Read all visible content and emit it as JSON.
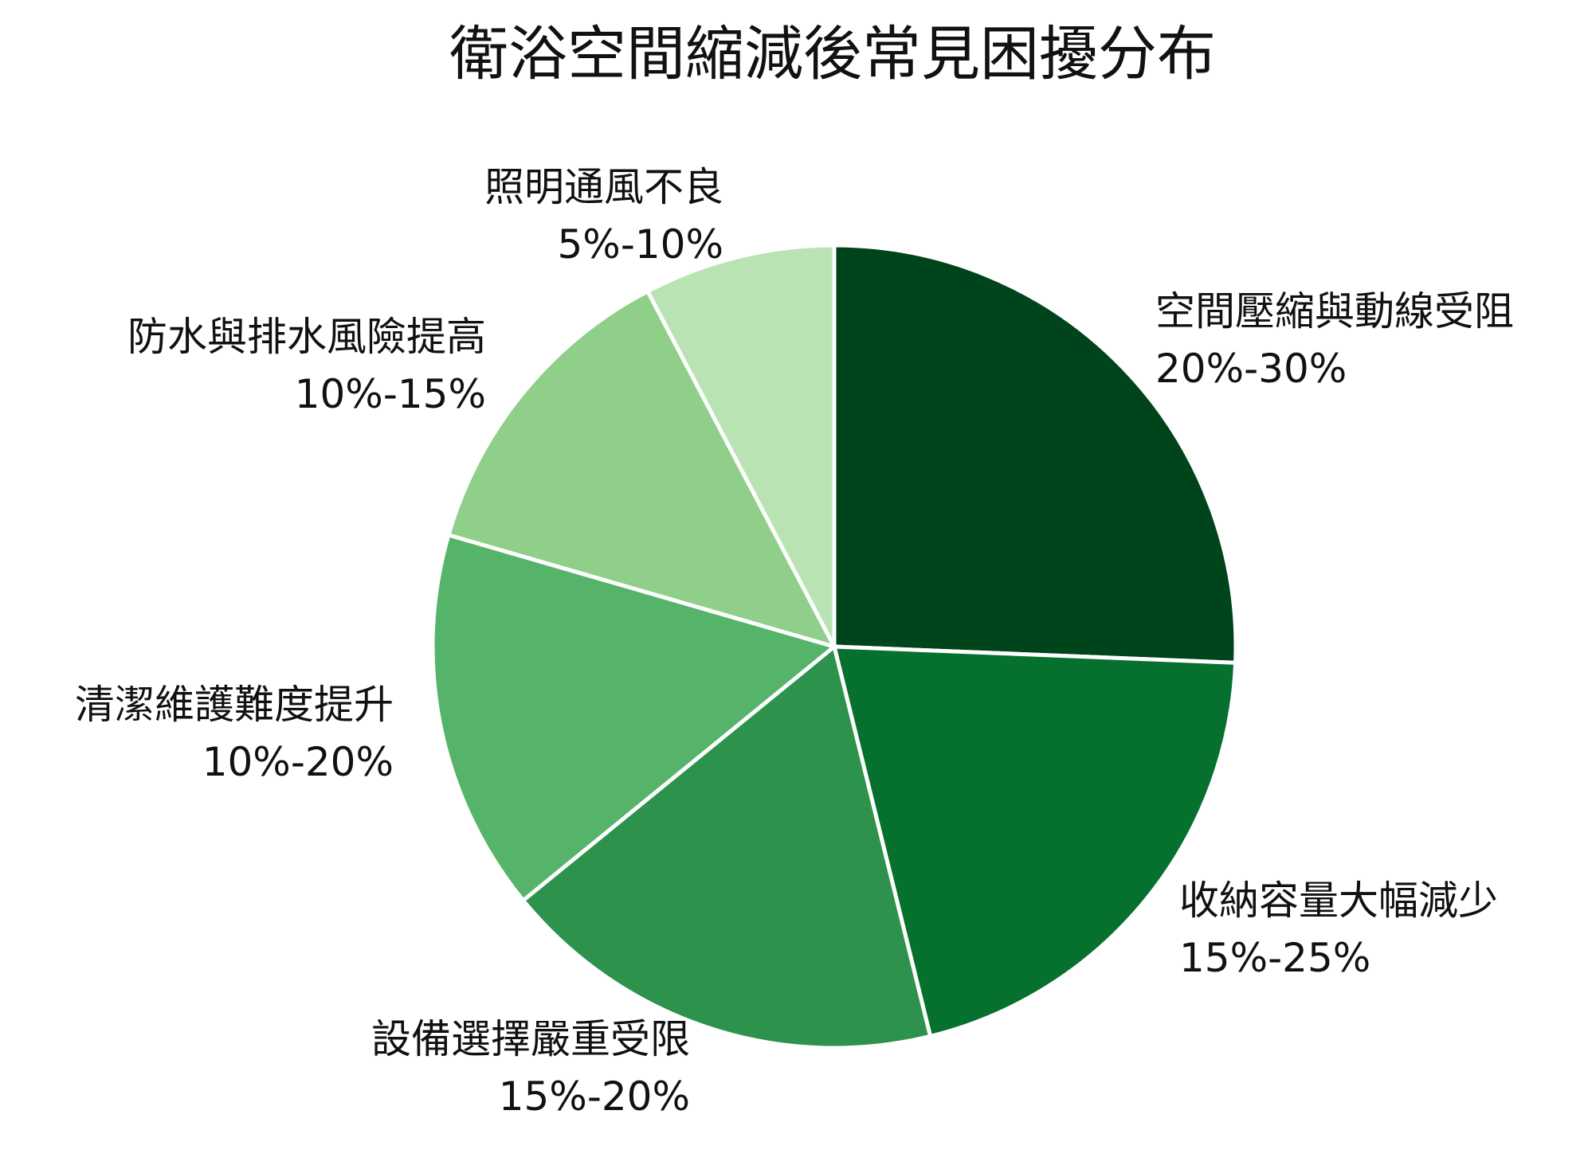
{
  "chart_data": {
    "type": "pie",
    "title": "衛浴空間縮減後常見困擾分布",
    "slices": [
      {
        "label": "空間壓縮與動線受阻",
        "range": "20%-30%",
        "value": 25,
        "color": "#00441b"
      },
      {
        "label": "收納容量大幅減少",
        "range": "15%-25%",
        "value": 20,
        "color": "#06702f"
      },
      {
        "label": "設備選擇嚴重受限",
        "range": "15%-20%",
        "value": 17.5,
        "color": "#2d934c"
      },
      {
        "label": "清潔維護難度提升",
        "range": "10%-20%",
        "value": 15,
        "color": "#56b46a"
      },
      {
        "label": "防水與排水風險提高",
        "range": "10%-15%",
        "value": 12.5,
        "color": "#8fcf89"
      },
      {
        "label": "照明通風不良",
        "range": "5%-10%",
        "value": 7.5,
        "color": "#b9e3b3"
      }
    ],
    "start_angle": "12 o'clock",
    "direction": "clockwise",
    "legend": "none"
  }
}
